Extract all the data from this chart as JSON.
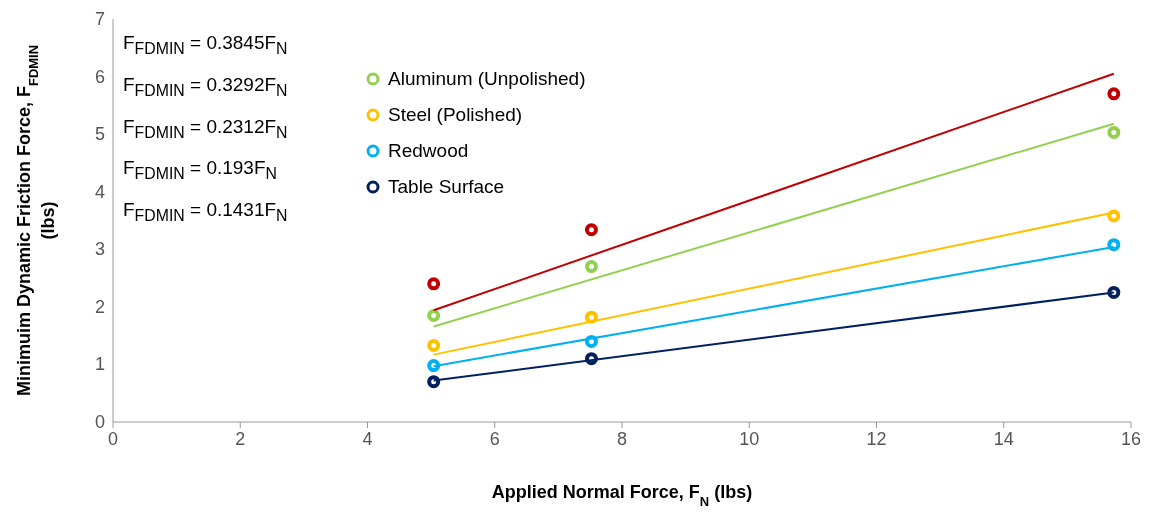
{
  "chart_data": {
    "type": "scatter",
    "xlabel": "Applied Normal Force, F$_{N}$ (lbs)",
    "ylabel": "Minimuim Dynamic Friction Force, F$_{FDMIN}$ (lbs)",
    "x": [
      5.04,
      7.52,
      15.73
    ],
    "series": [
      {
        "color": "#c00000",
        "values": [
          2.4,
          3.34,
          5.7
        ]
      },
      {
        "name": "Aluminum (Unpolished)",
        "color": "#92d050",
        "values": [
          1.85,
          2.7,
          5.03
        ]
      },
      {
        "name": "Steel (Polished)",
        "color": "#ffc000",
        "values": [
          1.33,
          1.82,
          3.58
        ]
      },
      {
        "name": "Redwood",
        "color": "#00b0f0",
        "values": [
          0.98,
          1.4,
          3.08
        ]
      },
      {
        "name": "Table Surface",
        "color": "#002060",
        "values": [
          0.7,
          1.1,
          2.25
        ]
      },
      {
        "type": "line",
        "marker": "none",
        "color": "#c00000",
        "values": [
          1.94,
          null,
          6.05
        ]
      },
      {
        "type": "line",
        "marker": "none",
        "color": "#92d050",
        "values": [
          1.66,
          null,
          5.18
        ]
      },
      {
        "type": "line",
        "marker": "none",
        "color": "#ffc000",
        "values": [
          1.17,
          null,
          3.64
        ]
      },
      {
        "type": "line",
        "marker": "none",
        "color": "#00b0f0",
        "values": [
          0.97,
          null,
          3.04
        ]
      },
      {
        "type": "line",
        "marker": "none",
        "color": "#002060",
        "values": [
          0.72,
          null,
          2.25
        ]
      }
    ],
    "annotations": [
      "F$_{FDMIN}$ = 0.3845F$_{N}$",
      "F$_{FDMIN}$ = 0.3292F$_{N}$",
      "F$_{FDMIN}$ = 0.2312F$_{N}$",
      "F$_{FDMIN}$ = 0.193F$_{N}$",
      "F$_{FDMIN}$ = 0.1431F$_{N}$"
    ],
    "xlim": [
      0,
      16
    ],
    "xticks": [
      0,
      2,
      4,
      6,
      8,
      10,
      12,
      14,
      16
    ],
    "ylim": [
      0,
      7
    ],
    "yticks": [
      0,
      1,
      2,
      3,
      4,
      5,
      6,
      7
    ],
    "marker": "circle",
    "legend": "top left",
    "grid": false
  }
}
